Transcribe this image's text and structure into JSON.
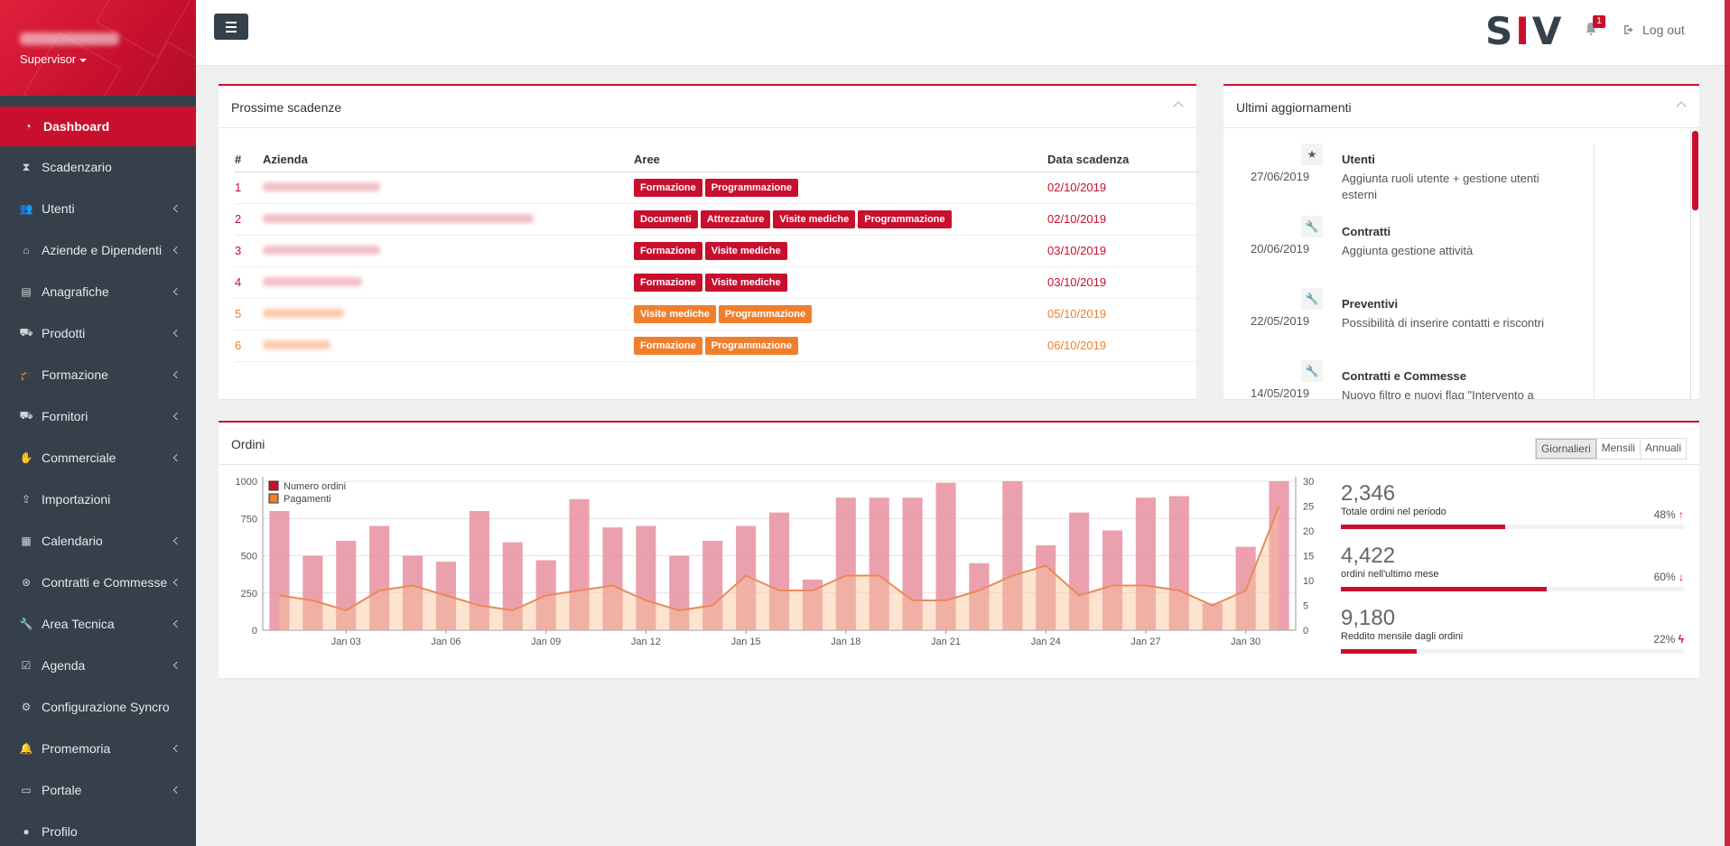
{
  "sidebar": {
    "role": "Supervisor",
    "items": [
      {
        "label": "Dashboard",
        "icon": "dashboard-icon",
        "active": true,
        "sub": false
      },
      {
        "label": "Scadenzario",
        "icon": "hourglass-icon",
        "sub": false
      },
      {
        "label": "Utenti",
        "icon": "users-icon",
        "sub": true
      },
      {
        "label": "Aziende e Dipendenti",
        "icon": "bank-icon",
        "sub": true
      },
      {
        "label": "Anagrafiche",
        "icon": "folder-icon",
        "sub": true
      },
      {
        "label": "Prodotti",
        "icon": "cart-icon",
        "sub": true
      },
      {
        "label": "Formazione",
        "icon": "graduation-cap-icon",
        "sub": true
      },
      {
        "label": "Fornitori",
        "icon": "truck-icon",
        "sub": true
      },
      {
        "label": "Commerciale",
        "icon": "handshake-icon",
        "sub": true
      },
      {
        "label": "Importazioni",
        "icon": "upload-icon",
        "sub": false
      },
      {
        "label": "Calendario",
        "icon": "calendar-icon",
        "sub": true
      },
      {
        "label": "Contratti e Commesse",
        "icon": "contract-icon",
        "sub": true
      },
      {
        "label": "Area Tecnica",
        "icon": "wrench-icon",
        "sub": true
      },
      {
        "label": "Agenda",
        "icon": "calendar-check-icon",
        "sub": true
      },
      {
        "label": "Configurazione Syncro",
        "icon": "gears-icon",
        "sub": false
      },
      {
        "label": "Promemoria",
        "icon": "bell-icon",
        "sub": true
      },
      {
        "label": "Portale",
        "icon": "monitor-icon",
        "sub": true
      },
      {
        "label": "Profilo",
        "icon": "user-icon",
        "sub": false
      }
    ]
  },
  "topbar": {
    "logo": "SIV",
    "notifications": "1",
    "logout": "Log out"
  },
  "scadenze": {
    "title": "Prossime scadenze",
    "headers": [
      "#",
      "Azienda",
      "Aree",
      "Data scadenza"
    ],
    "rows": [
      {
        "n": "1",
        "color": "red",
        "tags": [
          "Formazione",
          "Programmazione"
        ],
        "date": "02/10/2019",
        "blur": 130
      },
      {
        "n": "2",
        "color": "red",
        "tags": [
          "Documenti",
          "Attrezzature",
          "Visite mediche",
          "Programmazione"
        ],
        "date": "02/10/2019",
        "blur": 300
      },
      {
        "n": "3",
        "color": "red",
        "tags": [
          "Formazione",
          "Visite mediche"
        ],
        "date": "03/10/2019",
        "blur": 130
      },
      {
        "n": "4",
        "color": "red",
        "tags": [
          "Formazione",
          "Visite mediche"
        ],
        "date": "03/10/2019",
        "blur": 110
      },
      {
        "n": "5",
        "color": "orange",
        "tags": [
          "Visite mediche",
          "Programmazione"
        ],
        "date": "05/10/2019",
        "blur": 90
      },
      {
        "n": "6",
        "color": "orange",
        "tags": [
          "Formazione",
          "Programmazione"
        ],
        "date": "06/10/2019",
        "blur": 75
      }
    ]
  },
  "aggiornamenti": {
    "title": "Ultimi aggiornamenti",
    "items": [
      {
        "date": "27/06/2019",
        "icon": "star-icon",
        "title": "Utenti",
        "desc": "Aggiunta ruoli utente + gestione utenti esterni"
      },
      {
        "date": "20/06/2019",
        "icon": "wrench-icon",
        "title": "Contratti",
        "desc": "Aggiunta gestione attività"
      },
      {
        "date": "22/05/2019",
        "icon": "wrench-icon",
        "title": "Preventivi",
        "desc": "Possibilità di inserire contatti e riscontri"
      },
      {
        "date": "14/05/2019",
        "icon": "wrench-icon",
        "title": "Contratti e Commesse",
        "desc": "Nuovo filtro e nuovi flag \"Intervento a"
      }
    ]
  },
  "ordini": {
    "title": "Ordini",
    "periods": [
      "Giornalieri",
      "Mensili",
      "Annuali"
    ],
    "stats": [
      {
        "value": "2,346",
        "label": "Totale ordini nel periodo",
        "pct": "48%",
        "fill": 0.48,
        "arrow": "↑"
      },
      {
        "value": "4,422",
        "label": "ordini nell'ultimo mese",
        "pct": "60%",
        "fill": 0.6,
        "arrow": "↓"
      },
      {
        "value": "9,180",
        "label": "Reddito mensile dagli ordini",
        "pct": "22%",
        "fill": 0.22,
        "arrow": "ϟ"
      }
    ]
  },
  "chart_data": {
    "type": "bar",
    "series": [
      {
        "name": "Numero ordini",
        "type": "bar",
        "axis": "left",
        "color": "#c8102e",
        "values": [
          800,
          500,
          600,
          700,
          500,
          460,
          800,
          590,
          470,
          880,
          690,
          700,
          500,
          600,
          700,
          790,
          340,
          890,
          890,
          890,
          990,
          450,
          1000,
          570,
          790,
          670,
          890,
          900,
          180,
          560,
          1000
        ]
      },
      {
        "name": "Pagamenti",
        "type": "area",
        "axis": "right",
        "color": "#f07f2d",
        "values": [
          7,
          6,
          4,
          8,
          9,
          7,
          5,
          4,
          7,
          8,
          9,
          6,
          4,
          5,
          11,
          8,
          8,
          11,
          11,
          6,
          6,
          8,
          11,
          13,
          7,
          9,
          9,
          8,
          5,
          8,
          25
        ]
      }
    ],
    "x_tick_labels": [
      "Jan 03",
      "Jan 06",
      "Jan 09",
      "Jan 12",
      "Jan 15",
      "Jan 18",
      "Jan 21",
      "Jan 24",
      "Jan 27",
      "Jan 30"
    ],
    "y_left_ticks": [
      "0",
      "250",
      "500",
      "750",
      "1000"
    ],
    "y_right_ticks": [
      "0",
      "5",
      "10",
      "15",
      "20",
      "25",
      "30"
    ],
    "ylim_left": [
      0,
      1000
    ],
    "ylim_right": [
      0,
      30
    ],
    "legend_position": "top-left"
  }
}
